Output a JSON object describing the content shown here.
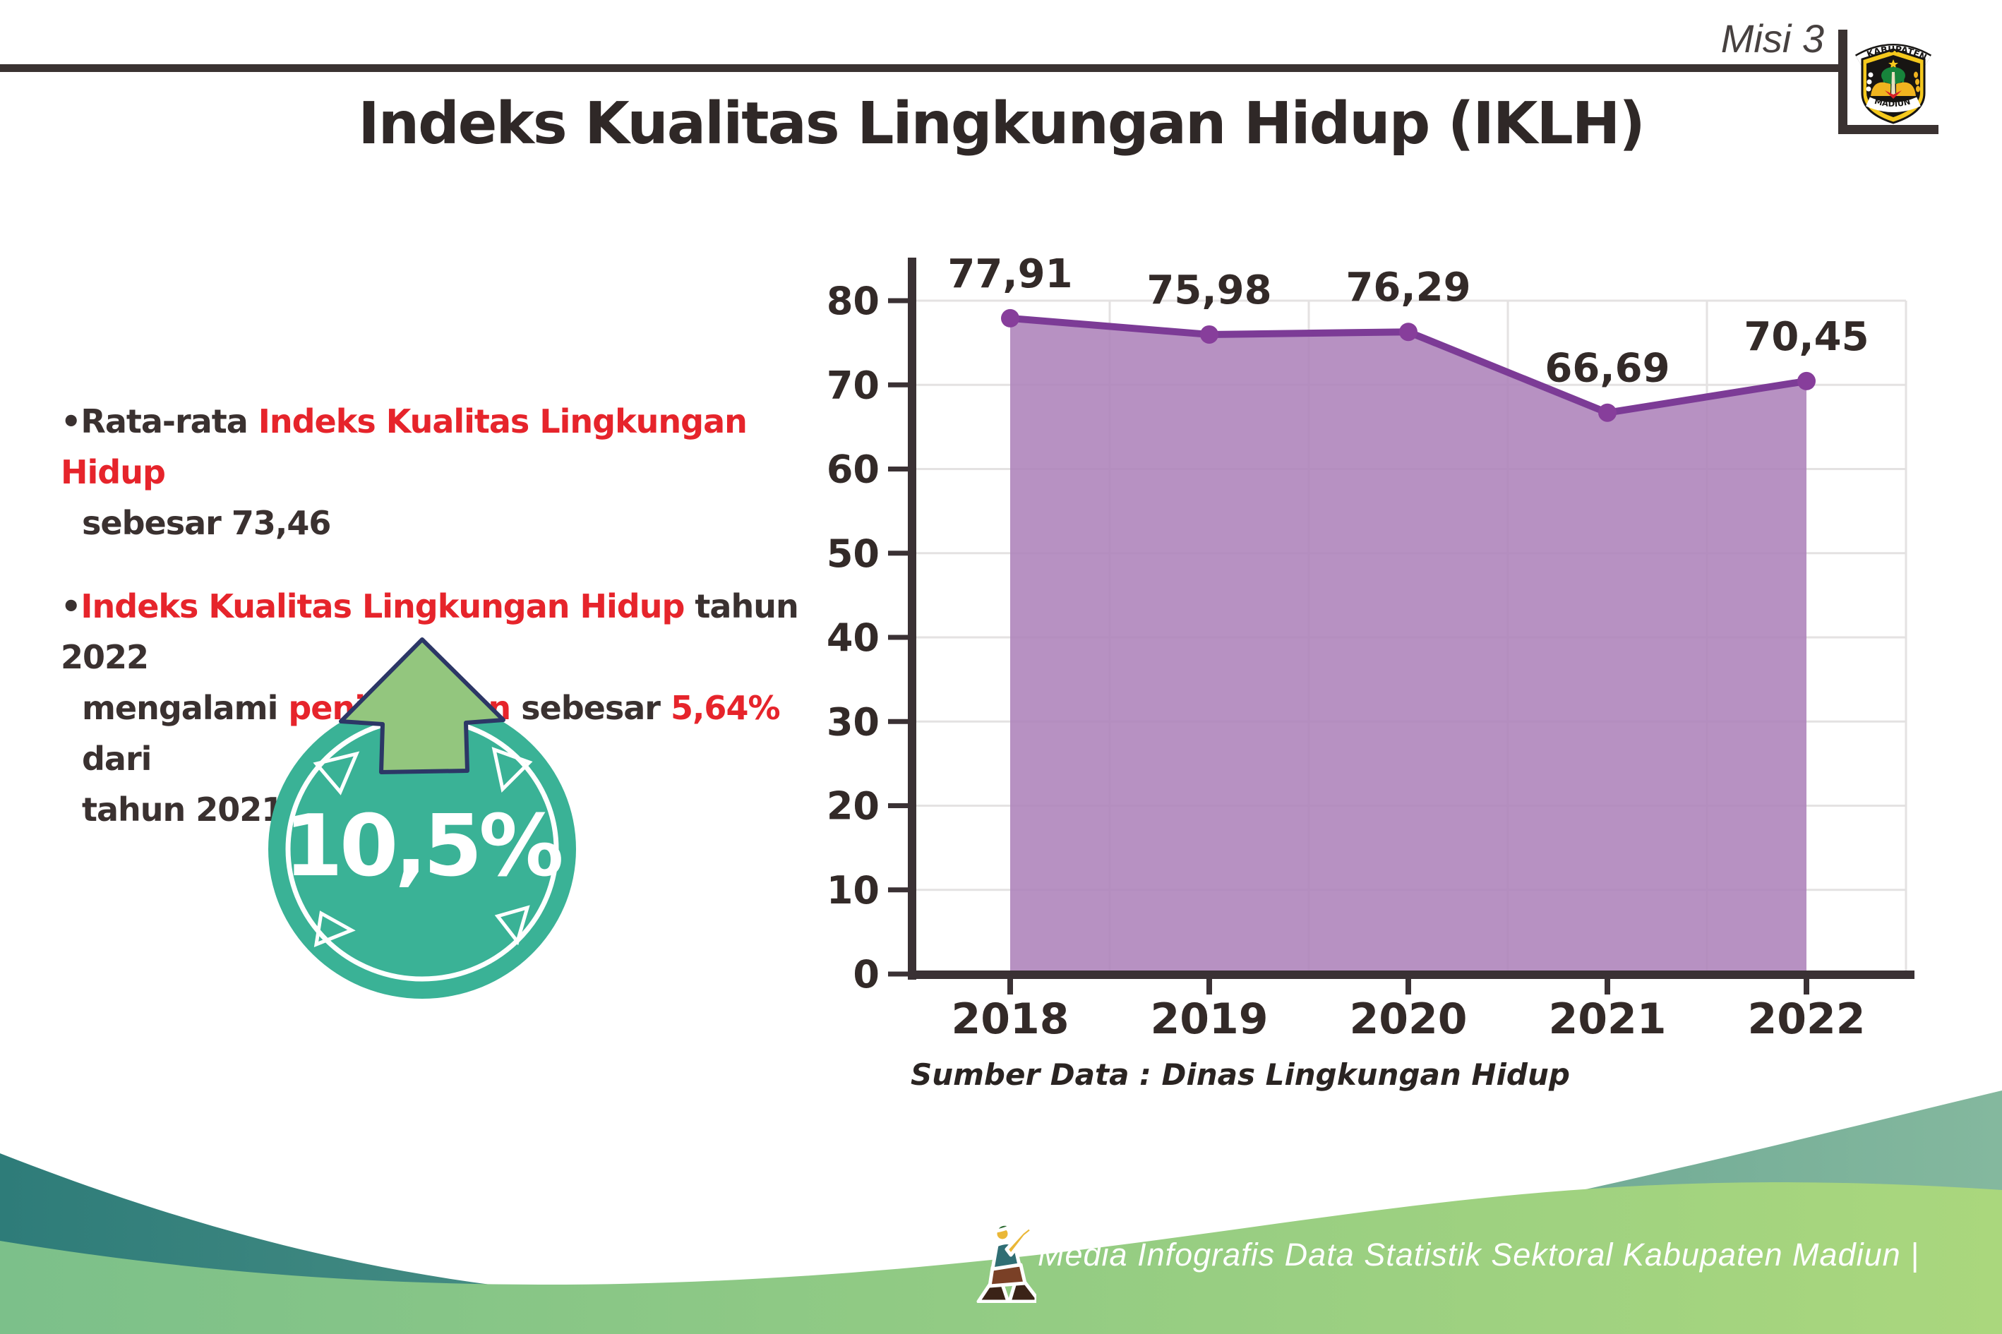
{
  "header": {
    "misi_label": "Misi 3",
    "title": "Indeks Kualitas Lingkungan Hidup (IKLH)",
    "logo": {
      "top_text": "KABUPATEN",
      "bottom_text": "MADIUN"
    }
  },
  "bullets": [
    {
      "lines": [
        {
          "segments": [
            {
              "text": "Rata-rata "
            },
            {
              "text": "Indeks Kualitas Lingkungan Hidup"
            }
          ]
        },
        {
          "segments": [
            {
              "text": "sebesar 73,46"
            }
          ]
        }
      ]
    },
    {
      "lines": [
        {
          "segments": [
            {
              "text": "Indeks Kualitas Lingkungan Hidup"
            },
            {
              "text": " tahun 2022"
            }
          ]
        },
        {
          "segments": [
            {
              "text": "mengalami "
            },
            {
              "text": "peningkatan"
            },
            {
              "text": " sebesar "
            },
            {
              "text": "5,64%"
            },
            {
              "text": " dari"
            }
          ]
        },
        {
          "segments": [
            {
              "text": "tahun 2021"
            }
          ]
        }
      ]
    }
  ],
  "badge": {
    "value": "10,5%",
    "circle_color": "#3ab296",
    "arrow_color": "#93c67e",
    "arrow_outline": "#2c3766",
    "text_color": "#ffffff"
  },
  "chart_data": {
    "type": "area",
    "title": "",
    "xlabel": "",
    "ylabel": "",
    "categories": [
      "2018",
      "2019",
      "2020",
      "2021",
      "2022"
    ],
    "series": [
      {
        "name": "IKLH",
        "values": [
          77.91,
          75.98,
          76.29,
          66.69,
          70.45
        ]
      }
    ],
    "point_labels": [
      "77,91",
      "75,98",
      "76,29",
      "66,69",
      "70,45"
    ],
    "ylim": [
      0,
      80
    ],
    "ytick_step": 10,
    "grid": true,
    "legend": "none",
    "line_color": "#7c3b96",
    "fill_color": "#ad82b9",
    "marker_color": "#873e9b",
    "axis_color": "#3a3134",
    "label_color": "#332a28",
    "grid_color": "#e4e2e2"
  },
  "source_note": "Sumber Data : Dinas Lingkungan Hidup",
  "footer": {
    "text": "Media Infografis Data Statistik Sektoral Kabupaten Madiun |"
  },
  "colors": {
    "accent_red": "#e6242b",
    "text_dark": "#3a3130",
    "rule_dark": "#3a3231",
    "wave_teal_left": "#2e7c79",
    "wave_teal_right": "#84b89e",
    "wave_green_left": "#7cc08a",
    "wave_green_right": "#aad77d"
  }
}
